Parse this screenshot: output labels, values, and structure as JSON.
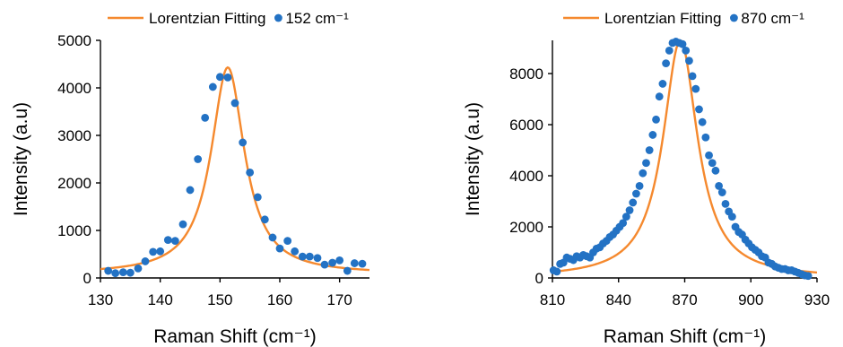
{
  "colors": {
    "fit_line": "#F5892E",
    "data_points": "#2372C4",
    "axis": "#000000"
  },
  "chart_data": [
    {
      "type": "scatter",
      "title": "",
      "xlabel": "Raman Shift (cm⁻¹)",
      "ylabel": "Intensity (a.u)",
      "xlim": [
        130,
        175
      ],
      "ylim": [
        0,
        5000
      ],
      "xticks": [
        130,
        140,
        150,
        160,
        170
      ],
      "yticks": [
        0,
        1000,
        2000,
        3000,
        4000,
        5000
      ],
      "grid": false,
      "legend_position": "top",
      "legend": [
        "Lorentzian Fitting",
        "152 cm⁻¹"
      ],
      "series": [
        {
          "name": "Lorentzian Fitting",
          "kind": "line",
          "model": "lorentzian",
          "center": 151.3,
          "hwhm": 3.4,
          "amplitude": 4350,
          "baseline": 80,
          "x_range": [
            130,
            175
          ]
        },
        {
          "name": "152 cm⁻¹",
          "kind": "scatter",
          "x": [
            131.3,
            132.5,
            133.8,
            135.0,
            136.3,
            137.5,
            138.8,
            140.0,
            141.3,
            142.5,
            143.8,
            145.0,
            146.3,
            147.5,
            148.8,
            150.0,
            151.3,
            152.5,
            153.8,
            155.0,
            156.3,
            157.5,
            158.8,
            160.0,
            161.3,
            162.5,
            163.8,
            165.0,
            166.3,
            167.5,
            168.8,
            170.0,
            171.3,
            172.5,
            173.8
          ],
          "y": [
            150,
            100,
            120,
            110,
            200,
            350,
            550,
            560,
            800,
            780,
            1130,
            1850,
            2500,
            3370,
            4020,
            4230,
            4220,
            3680,
            2850,
            2220,
            1700,
            1230,
            850,
            620,
            780,
            560,
            450,
            450,
            420,
            280,
            320,
            370,
            150,
            310,
            300
          ]
        }
      ]
    },
    {
      "type": "scatter",
      "title": "",
      "xlabel": "Raman Shift (cm⁻¹)",
      "ylabel": "Intensity (a.u)",
      "xlim": [
        810,
        930
      ],
      "ylim": [
        0,
        9300
      ],
      "xticks": [
        810,
        840,
        870,
        900,
        930
      ],
      "yticks": [
        0,
        2000,
        4000,
        6000,
        8000
      ],
      "grid": false,
      "legend_position": "top",
      "legend": [
        "Lorentzian Fitting",
        "870 cm⁻¹"
      ],
      "series": [
        {
          "name": "Lorentzian Fitting",
          "kind": "line",
          "model": "lorentzian",
          "center": 868,
          "hwhm": 9.5,
          "amplitude": 9300,
          "baseline": 0,
          "x_range": [
            810,
            930
          ]
        },
        {
          "name": "870 cm⁻¹",
          "kind": "scatter",
          "x": [
            810.5,
            812,
            813.5,
            815,
            816.5,
            818,
            819.5,
            821,
            822.5,
            824,
            825.5,
            827,
            828.5,
            830,
            831.5,
            833,
            834.5,
            836,
            837.5,
            839,
            840.5,
            842,
            843.5,
            845,
            846.5,
            848,
            849.5,
            851,
            852.5,
            854,
            855.5,
            857,
            858.5,
            860,
            861.5,
            863,
            864.5,
            866,
            867.5,
            869,
            870.5,
            872,
            873.5,
            875,
            876.5,
            878,
            879.5,
            881,
            882.5,
            884,
            885.5,
            887,
            888.5,
            890,
            891.5,
            893,
            894.5,
            896,
            897.5,
            899,
            900.5,
            902,
            903.5,
            905,
            906.5,
            908,
            909.5,
            911,
            912.5,
            914,
            915.5,
            917,
            918.5,
            920,
            921.5,
            923,
            924.5,
            926
          ],
          "y": [
            300,
            250,
            550,
            600,
            800,
            750,
            700,
            850,
            800,
            900,
            850,
            800,
            1000,
            1150,
            1200,
            1350,
            1450,
            1600,
            1700,
            1850,
            2000,
            2150,
            2400,
            2650,
            2950,
            3300,
            3600,
            4100,
            4500,
            5000,
            5600,
            6200,
            7100,
            7600,
            8400,
            8900,
            9200,
            9250,
            9200,
            9150,
            8900,
            8500,
            7900,
            7400,
            6600,
            6100,
            5500,
            4800,
            4500,
            4200,
            3600,
            3350,
            2900,
            2600,
            2400,
            2000,
            1800,
            1700,
            1500,
            1350,
            1200,
            1100,
            1000,
            850,
            800,
            600,
            550,
            450,
            400,
            350,
            350,
            300,
            300,
            250,
            200,
            150,
            100,
            80
          ]
        }
      ]
    }
  ]
}
